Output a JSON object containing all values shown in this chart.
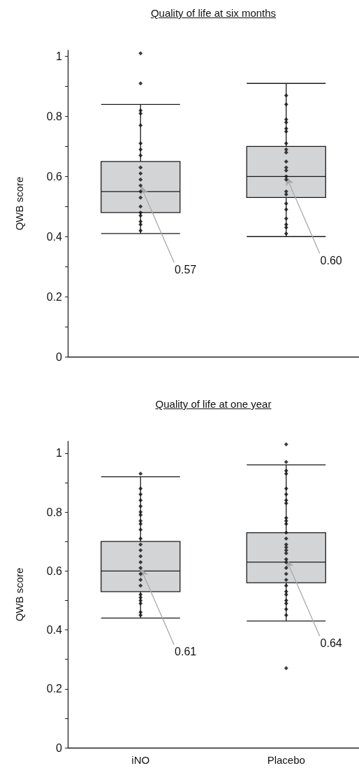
{
  "chart_data": [
    {
      "type": "box",
      "title": "Quality of life at six months",
      "ylabel": "QWB score",
      "categories": [
        "iNO",
        "Placebo"
      ],
      "tick_labels": "y",
      "ylim": [
        0,
        1.02
      ],
      "yticks": [
        0,
        {
          "value": 0.1,
          "label": null
        },
        0.2,
        {
          "value": 0.3,
          "label": null
        },
        0.4,
        {
          "value": 0.5,
          "label": null
        },
        0.6,
        {
          "value": 0.7,
          "label": null
        },
        0.8,
        {
          "value": 0.9,
          "label": null
        },
        1
      ],
      "series": [
        {
          "type": "box",
          "color": "#d3d4d6",
          "boxes": [
            {
              "low": 0.41,
              "q1": 0.48,
              "median": 0.55,
              "q3": 0.65,
              "high": 0.84
            },
            {
              "low": 0.4,
              "q1": 0.53,
              "median": 0.6,
              "q3": 0.7,
              "high": 0.91
            }
          ]
        },
        {
          "type": "scatter",
          "color": "#111111",
          "x": [
            "iNO",
            "iNO",
            "iNO",
            "iNO",
            "iNO",
            "iNO",
            "iNO",
            "iNO",
            "iNO",
            "iNO",
            "iNO",
            "iNO",
            "iNO",
            "iNO",
            "iNO",
            "iNO",
            "iNO",
            "iNO",
            "iNO",
            "iNO"
          ],
          "values": [
            1.01,
            0.91,
            0.82,
            0.81,
            0.77,
            0.71,
            0.69,
            0.67,
            0.63,
            0.61,
            0.59,
            0.57,
            0.55,
            0.53,
            0.5,
            0.48,
            0.47,
            0.45,
            0.44,
            0.42
          ]
        },
        {
          "type": "scatter",
          "color": "#111111",
          "x": [
            "Placebo",
            "Placebo",
            "Placebo",
            "Placebo",
            "Placebo",
            "Placebo",
            "Placebo",
            "Placebo",
            "Placebo",
            "Placebo",
            "Placebo",
            "Placebo",
            "Placebo",
            "Placebo",
            "Placebo",
            "Placebo",
            "Placebo",
            "Placebo",
            "Placebo",
            "Placebo",
            "Placebo",
            "Placebo"
          ],
          "values": [
            0.87,
            0.84,
            0.79,
            0.78,
            0.76,
            0.75,
            0.71,
            0.69,
            0.68,
            0.65,
            0.63,
            0.62,
            0.6,
            0.59,
            0.55,
            0.54,
            0.51,
            0.49,
            0.46,
            0.44,
            0.43,
            0.41
          ]
        }
      ],
      "marker": "diamond",
      "annotations": [
        {
          "text": "0.57",
          "x": "iNO",
          "y": 0.57
        },
        {
          "text": "0.60",
          "x": "Placebo",
          "y": 0.6
        }
      ]
    },
    {
      "type": "box",
      "title": "Quality of life at one year",
      "ylabel": "QWB score",
      "categories": [
        "iNO",
        "Placebo"
      ],
      "ylim": [
        0,
        1.04
      ],
      "yticks": [
        0,
        {
          "value": 0.1,
          "label": null
        },
        0.2,
        {
          "value": 0.3,
          "label": null
        },
        0.4,
        {
          "value": 0.5,
          "label": null
        },
        0.6,
        {
          "value": 0.7,
          "label": null
        },
        0.8,
        {
          "value": 0.9,
          "label": null
        },
        1
      ],
      "series": [
        {
          "type": "box",
          "color": "#d3d4d6",
          "boxes": [
            {
              "low": 0.44,
              "q1": 0.53,
              "median": 0.6,
              "q3": 0.7,
              "high": 0.92
            },
            {
              "low": 0.43,
              "q1": 0.56,
              "median": 0.63,
              "q3": 0.73,
              "high": 0.96
            }
          ]
        },
        {
          "type": "scatter",
          "color": "#111111",
          "x": [
            "iNO",
            "iNO",
            "iNO",
            "iNO",
            "iNO",
            "iNO",
            "iNO",
            "iNO",
            "iNO",
            "iNO",
            "iNO",
            "iNO",
            "iNO",
            "iNO",
            "iNO",
            "iNO",
            "iNO",
            "iNO",
            "iNO",
            "iNO",
            "iNO",
            "iNO",
            "iNO",
            "iNO",
            "iNO"
          ],
          "values": [
            0.93,
            0.88,
            0.86,
            0.84,
            0.82,
            0.8,
            0.79,
            0.77,
            0.76,
            0.74,
            0.71,
            0.69,
            0.67,
            0.65,
            0.63,
            0.61,
            0.59,
            0.57,
            0.55,
            0.52,
            0.51,
            0.5,
            0.49,
            0.46,
            0.45
          ]
        },
        {
          "type": "scatter",
          "color": "#111111",
          "x": [
            "Placebo",
            "Placebo",
            "Placebo",
            "Placebo",
            "Placebo",
            "Placebo",
            "Placebo",
            "Placebo",
            "Placebo",
            "Placebo",
            "Placebo",
            "Placebo",
            "Placebo",
            "Placebo",
            "Placebo",
            "Placebo",
            "Placebo",
            "Placebo",
            "Placebo",
            "Placebo",
            "Placebo",
            "Placebo",
            "Placebo",
            "Placebo",
            "Placebo",
            "Placebo",
            "Placebo",
            "Placebo",
            "Placebo",
            "Placebo"
          ],
          "values": [
            1.03,
            0.97,
            0.94,
            0.93,
            0.88,
            0.86,
            0.84,
            0.83,
            0.78,
            0.77,
            0.76,
            0.73,
            0.71,
            0.69,
            0.68,
            0.67,
            0.66,
            0.64,
            0.63,
            0.61,
            0.59,
            0.57,
            0.55,
            0.53,
            0.52,
            0.5,
            0.49,
            0.47,
            0.45,
            0.27
          ]
        }
      ],
      "marker": "diamond",
      "annotations": [
        {
          "text": "0.61",
          "x": "iNO",
          "y": 0.61
        },
        {
          "text": "0.64",
          "x": "Placebo",
          "y": 0.64
        }
      ]
    }
  ]
}
